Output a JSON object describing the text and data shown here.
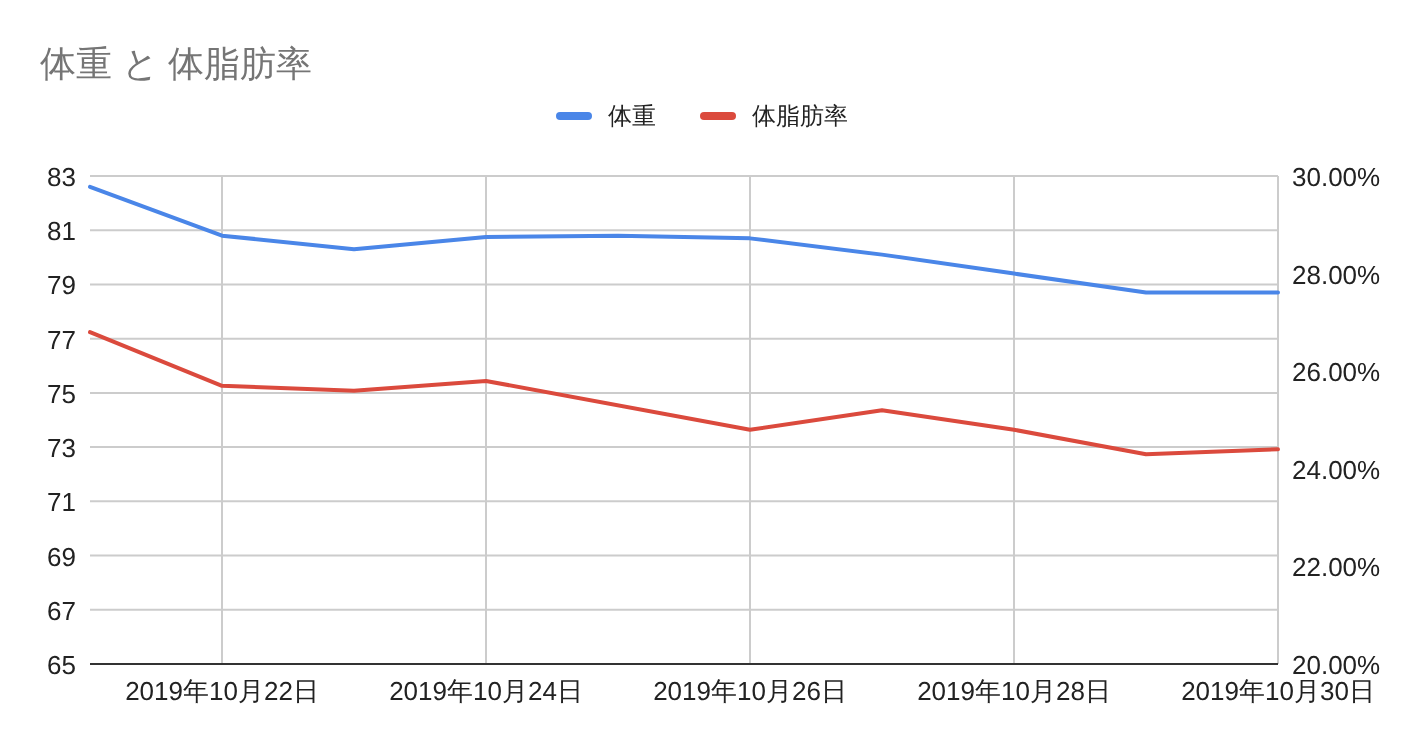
{
  "chart_data": {
    "type": "line",
    "title": "体重 と 体脂肪率",
    "series": [
      {
        "name": "体重",
        "color": "#4a86e8",
        "x": [
          "2019-10-21",
          "2019-10-22",
          "2019-10-23",
          "2019-10-24",
          "2019-10-25",
          "2019-10-26",
          "2019-10-27",
          "2019-10-28",
          "2019-10-29",
          "2019-10-30"
        ],
        "values": [
          82.6,
          80.8,
          80.3,
          80.75,
          80.8,
          80.7,
          80.1,
          79.4,
          78.7,
          78.7
        ]
      },
      {
        "name": "体脂肪率",
        "color": "#db4a3d",
        "axis": "y2",
        "x": [
          "2019-10-21",
          "2019-10-22",
          "2019-10-23",
          "2019-10-24",
          "2019-10-26",
          "2019-10-27",
          "2019-10-28",
          "2019-10-29",
          "2019-10-30"
        ],
        "values": [
          26.8,
          25.7,
          25.6,
          25.8,
          24.8,
          25.2,
          24.8,
          24.3,
          24.4
        ]
      }
    ],
    "xlim": [
      "2019-10-21",
      "2019-10-30"
    ],
    "xticks": [
      {
        "value": "2019-10-22",
        "label": "2019年10月22日"
      },
      {
        "value": "2019-10-24",
        "label": "2019年10月24日"
      },
      {
        "value": "2019-10-26",
        "label": "2019年10月26日"
      },
      {
        "value": "2019-10-28",
        "label": "2019年10月28日"
      },
      {
        "value": "2019-10-30",
        "label": "2019年10月30日"
      }
    ],
    "ylim": [
      65,
      83
    ],
    "yticks": [
      65,
      67,
      69,
      71,
      73,
      75,
      77,
      79,
      81,
      83
    ],
    "y2lim": [
      20,
      30
    ],
    "y2ticks": [
      {
        "value": 20,
        "label": "20.00%"
      },
      {
        "value": 22,
        "label": "22.00%"
      },
      {
        "value": 24,
        "label": "24.00%"
      },
      {
        "value": 26,
        "label": "26.00%"
      },
      {
        "value": 28,
        "label": "28.00%"
      },
      {
        "value": 30,
        "label": "30.00%"
      }
    ],
    "grid": true,
    "legend": "top",
    "marker": "none",
    "line_style": "solid"
  }
}
